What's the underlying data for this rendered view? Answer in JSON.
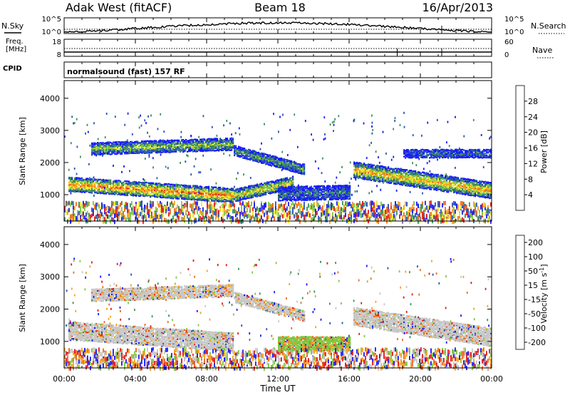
{
  "header": {
    "station": "Adak West (fitACF)",
    "beam": "Beam 18",
    "date": "16/Apr/2013"
  },
  "panels": {
    "nsky": {
      "left_label": "N.Sky",
      "right_label": "N.Search",
      "left_ticks": [
        "10^5",
        "10^0"
      ],
      "right_ticks": [
        "10^5",
        "10^0"
      ]
    },
    "freq": {
      "left_label_1": "Freq.",
      "left_label_2": "[MHz]",
      "right_label": "Nave",
      "left_ticks": [
        "18",
        "8"
      ],
      "right_ticks": [
        "60",
        "0"
      ]
    },
    "cpid": {
      "label": "CPID",
      "text": "normalsound (fast) 157 RF"
    }
  },
  "chart_data": [
    {
      "type": "heatmap",
      "name": "power",
      "ylabel": "Slant Range [km]",
      "ylim": [
        180,
        4550
      ],
      "yticks": [
        "1000",
        "2000",
        "3000",
        "4000"
      ],
      "colorbar_label": "Power [dB]",
      "colorbar_ticks": [
        "4",
        "8",
        "12",
        "16",
        "20",
        "24",
        "28"
      ],
      "colors": [
        "#1a1aff",
        "#2a55b5",
        "#3e8f5c",
        "#7dc843",
        "#f2e82c",
        "#f5a31e",
        "#f06a1e",
        "#e31a1c"
      ],
      "bands": [
        {
          "t0": 0.2,
          "t1": 9.5,
          "r_start": 1350,
          "r_end": 1000,
          "width": 220,
          "level": 0.8
        },
        {
          "t0": 9.5,
          "t1": 12.8,
          "r_start": 1000,
          "r_end": 1400,
          "width": 180,
          "level": 0.6
        },
        {
          "t0": 1.5,
          "t1": 9.5,
          "r_start": 2450,
          "r_end": 2600,
          "width": 180,
          "level": 0.45
        },
        {
          "t0": 9.5,
          "t1": 13.5,
          "r_start": 2400,
          "r_end": 1800,
          "width": 160,
          "level": 0.35
        },
        {
          "t0": 12.0,
          "t1": 16.0,
          "r_start": 1050,
          "r_end": 1100,
          "width": 220,
          "level": 0.25
        },
        {
          "t0": 16.2,
          "t1": 24.0,
          "r_start": 1800,
          "r_end": 1150,
          "width": 240,
          "level": 0.7
        },
        {
          "t0": 19.0,
          "t1": 24.0,
          "r_start": 2300,
          "r_end": 2300,
          "width": 120,
          "level": 0.2
        }
      ]
    },
    {
      "type": "heatmap",
      "name": "velocity",
      "ylabel": "Slant Range [km]",
      "ylim": [
        180,
        4550
      ],
      "yticks": [
        "1000",
        "2000",
        "3000",
        "4000"
      ],
      "colorbar_label": "Velocity [m s-1]",
      "colorbar_ticks": [
        "200",
        "100",
        "50",
        "15",
        "-15",
        "-50",
        "-100",
        "-200"
      ],
      "colors": [
        "#1a1aff",
        "#2a55b5",
        "#3e8f5c",
        "#7dc843",
        "#c8c8c8",
        "#f5a31e",
        "#f06a1e",
        "#e31a1c"
      ],
      "bands": [
        {
          "t0": 0.2,
          "t1": 9.5,
          "r_start": 1350,
          "r_end": 1000,
          "width": 260,
          "level": 0.1
        },
        {
          "t0": 1.5,
          "t1": 9.5,
          "r_start": 2450,
          "r_end": 2600,
          "width": 180,
          "level": 0.2
        },
        {
          "t0": 9.5,
          "t1": 13.5,
          "r_start": 2400,
          "r_end": 1800,
          "width": 160,
          "level": 0.2
        },
        {
          "t0": 12.0,
          "t1": 16.0,
          "r_start": 950,
          "r_end": 950,
          "width": 200,
          "level": 0.6
        },
        {
          "t0": 16.2,
          "t1": 24.0,
          "r_start": 1800,
          "r_end": 1150,
          "width": 260,
          "level": 0.1
        }
      ]
    }
  ],
  "time_axis": {
    "label": "Time UT",
    "range_hours": [
      0,
      24
    ],
    "ticks": [
      "00:00",
      "04:00",
      "08:00",
      "12:00",
      "16:00",
      "20:00",
      "00:00"
    ]
  }
}
